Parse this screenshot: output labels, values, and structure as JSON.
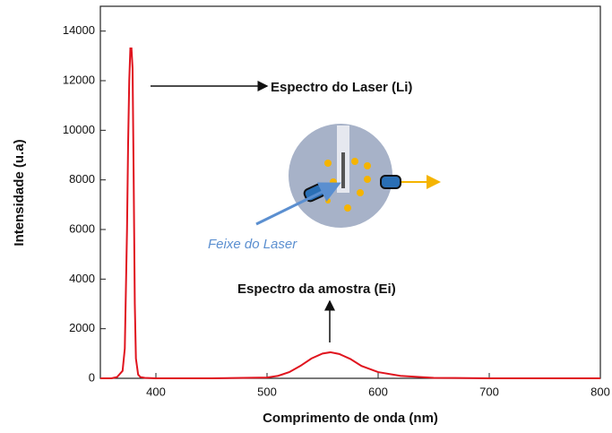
{
  "chart_data": {
    "type": "line",
    "xlabel": "Comprimento de onda (nm)",
    "ylabel": "Intensidade (u.a)",
    "annotations": [
      "Espectro do Laser (Li)",
      "Espectro da amostra (Ei)",
      "Feixe do Laser"
    ],
    "x": [
      350,
      360,
      365,
      370,
      372,
      374,
      375,
      376,
      377,
      378,
      379,
      380,
      381,
      382,
      384,
      386,
      390,
      400,
      450,
      500,
      510,
      520,
      530,
      540,
      550,
      557,
      565,
      575,
      585,
      600,
      620,
      650,
      700,
      800
    ],
    "series": [
      {
        "name": "Espectro",
        "color": "#e0141e",
        "values": [
          0,
          0,
          50,
          300,
          1200,
          6000,
          9500,
          12000,
          13300,
          13300,
          12500,
          8000,
          3000,
          800,
          150,
          50,
          20,
          0,
          0,
          30,
          100,
          250,
          500,
          800,
          1000,
          1050,
          980,
          780,
          500,
          250,
          100,
          20,
          0,
          0
        ]
      }
    ],
    "xlim": [
      350,
      800
    ],
    "xticks": [
      400,
      500,
      600,
      700,
      800
    ],
    "ylim": [
      0,
      15000
    ],
    "yticks": [
      0,
      2000,
      4000,
      6000,
      8000,
      10000,
      12000,
      14000
    ]
  }
}
